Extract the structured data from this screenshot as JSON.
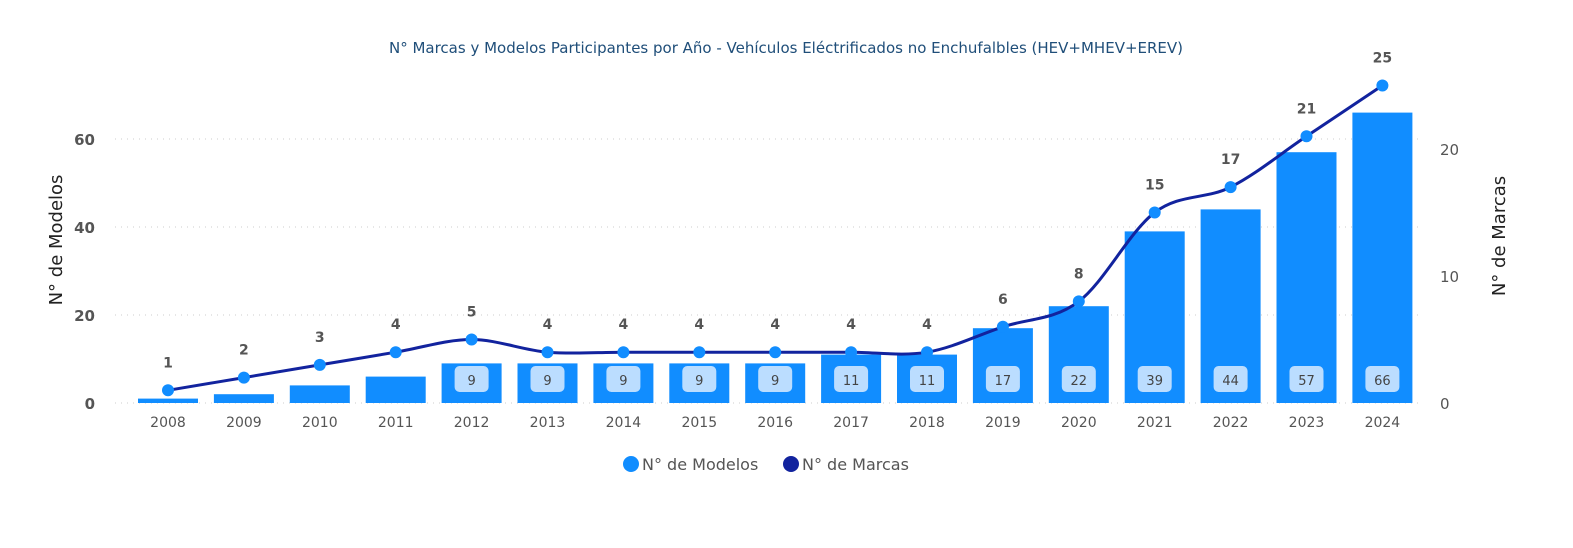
{
  "chart_data": {
    "type": "bar+line",
    "title": "N° Marcas y Modelos Participantes por Año - Vehículos Eléctrificados no Enchufalbles (HEV+MHEV+EREV)",
    "categories": [
      "2008",
      "2009",
      "2010",
      "2011",
      "2012",
      "2013",
      "2014",
      "2015",
      "2016",
      "2017",
      "2018",
      "2019",
      "2020",
      "2021",
      "2022",
      "2023",
      "2024"
    ],
    "series": [
      {
        "name": "N° de Modelos",
        "type": "bar",
        "axis": "left",
        "color": "#118DFF",
        "values": [
          1,
          2,
          4,
          6,
          9,
          9,
          9,
          9,
          9,
          11,
          11,
          17,
          22,
          39,
          44,
          57,
          66
        ],
        "labels_shown": [
          false,
          false,
          false,
          false,
          true,
          true,
          true,
          true,
          true,
          true,
          true,
          true,
          true,
          true,
          true,
          true,
          true
        ]
      },
      {
        "name": "N° de Marcas",
        "type": "line",
        "axis": "right",
        "color": "#12239E",
        "values": [
          1,
          2,
          3,
          4,
          5,
          4,
          4,
          4,
          4,
          4,
          4,
          6,
          8,
          15,
          17,
          21,
          25
        ]
      }
    ],
    "ylabel": "N° de Modelos",
    "y2label": "N° de Marcas",
    "ylim": [
      0,
      70.5
    ],
    "yticks": [
      0,
      20,
      40,
      60
    ],
    "y2lim": [
      0,
      25.5
    ],
    "y2ticks": [
      0,
      10,
      20
    ],
    "grid": true,
    "legend_position": "bottom"
  }
}
